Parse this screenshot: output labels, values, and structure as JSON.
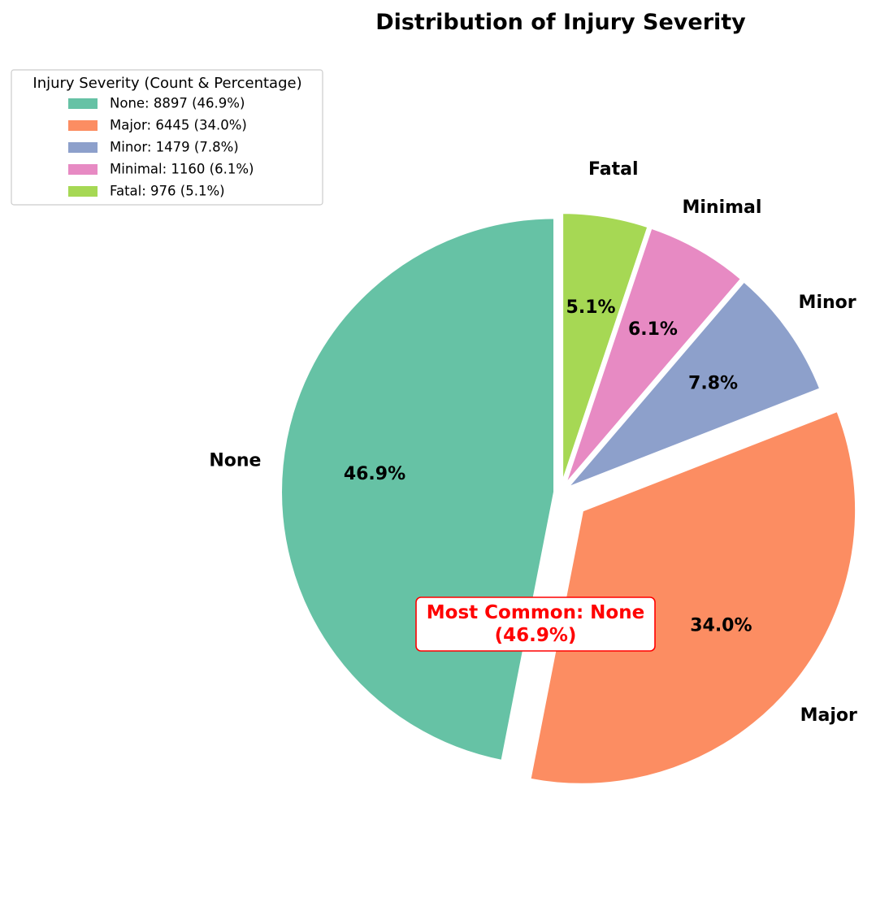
{
  "chart_data": {
    "type": "pie",
    "title": "Distribution of Injury Severity",
    "categories": [
      "None",
      "Major",
      "Minor",
      "Minimal",
      "Fatal"
    ],
    "values": [
      8897,
      6445,
      1479,
      1160,
      976
    ],
    "percent_labels": [
      "46.9%",
      "34.0%",
      "7.8%",
      "6.1%",
      "5.1%"
    ],
    "colors": [
      "#66c2a5",
      "#fc8d62",
      "#8da0cb",
      "#e78ac3",
      "#a6d854"
    ],
    "legend": {
      "title": "Injury Severity (Count & Percentage)",
      "placement": "top-left",
      "entries": [
        "None: 8897 (46.9%)",
        "Major: 6445 (34.0%)",
        "Minor: 1479 (7.8%)",
        "Minimal: 1160 (6.1%)",
        "Fatal: 976 (5.1%)"
      ]
    },
    "annotation": {
      "line1": "Most Common: None",
      "line2": "(46.9%)",
      "color": "#ff0000"
    }
  }
}
